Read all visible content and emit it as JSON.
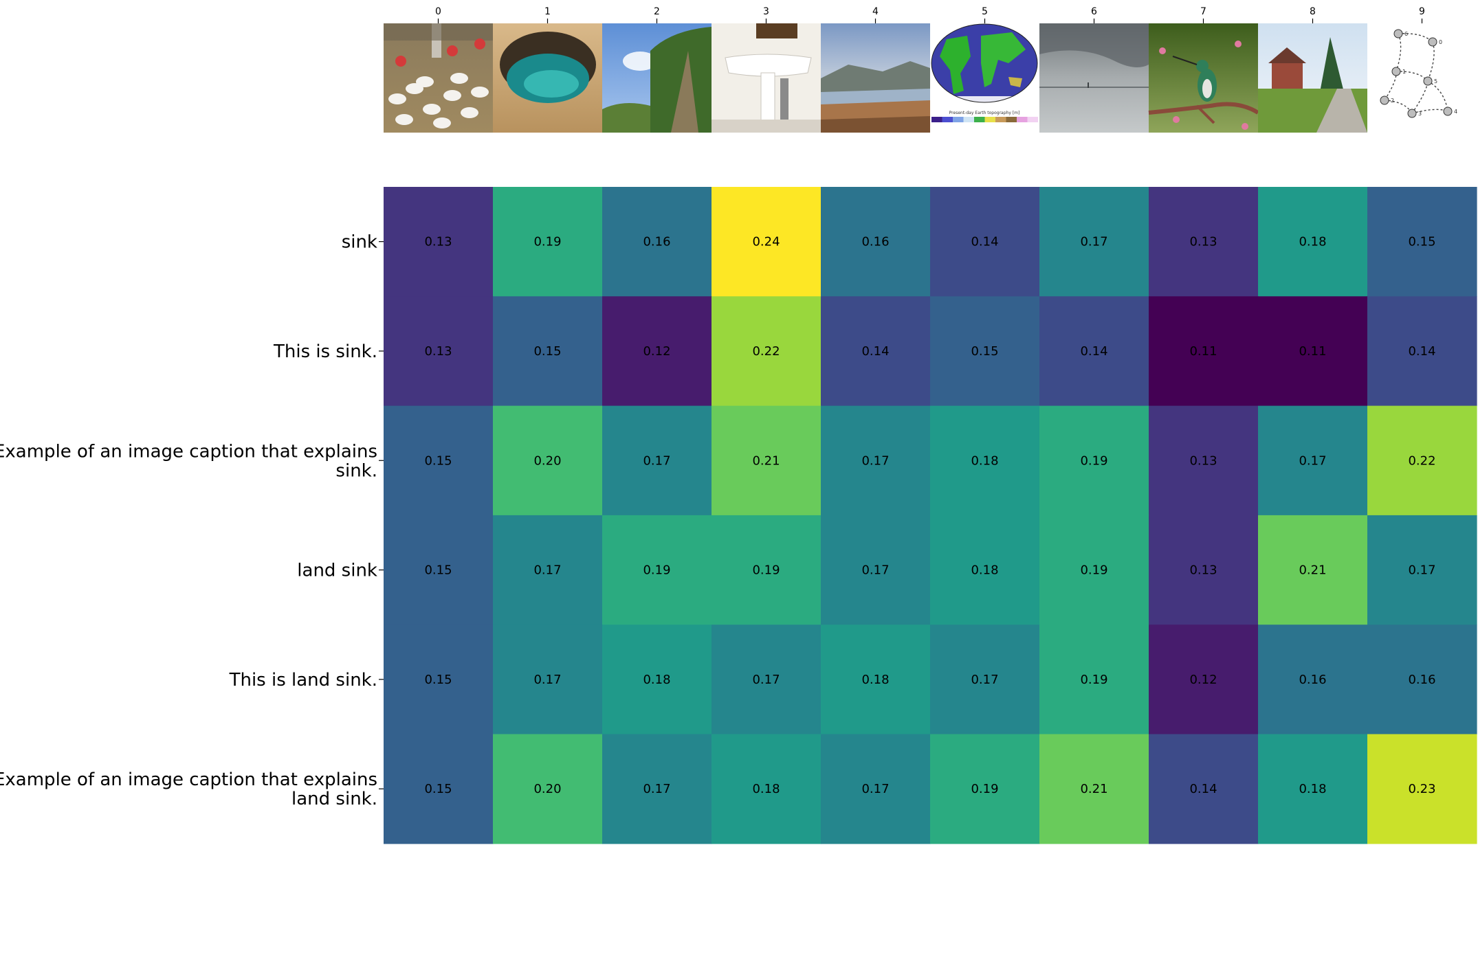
{
  "chart_data": {
    "type": "heatmap",
    "colormap": "viridis",
    "value_range": [
      0.11,
      0.24
    ],
    "columns": [
      "0",
      "1",
      "2",
      "3",
      "4",
      "5",
      "6",
      "7",
      "8",
      "9"
    ],
    "column_images": [
      "chickens-on-barn-floor-photo",
      "cave-with-turquoise-pool-photo",
      "sky-and-trees-photo",
      "bathroom-sink-photo",
      "river-valley-landscape-photo",
      "world-topography-map",
      "stormy-lake-horizon-photo",
      "hummingbird-on-branch-photo",
      "rural-road-with-house-photo",
      "directed-graph-diagram"
    ],
    "map_legend_caption": "Present-day Earth topography [m]",
    "rows": [
      [
        "sink"
      ],
      [
        "This is sink."
      ],
      [
        "Example of an image caption that explains",
        "sink."
      ],
      [
        "land sink"
      ],
      [
        "This is land sink."
      ],
      [
        "Example of an image caption that explains",
        "land sink."
      ]
    ],
    "values": [
      [
        0.13,
        0.19,
        0.16,
        0.24,
        0.16,
        0.14,
        0.17,
        0.13,
        0.18,
        0.15
      ],
      [
        0.13,
        0.15,
        0.12,
        0.22,
        0.14,
        0.15,
        0.14,
        0.11,
        0.11,
        0.14
      ],
      [
        0.15,
        0.2,
        0.17,
        0.21,
        0.17,
        0.18,
        0.19,
        0.13,
        0.17,
        0.22
      ],
      [
        0.15,
        0.17,
        0.19,
        0.19,
        0.17,
        0.18,
        0.19,
        0.13,
        0.21,
        0.17
      ],
      [
        0.15,
        0.17,
        0.18,
        0.17,
        0.18,
        0.17,
        0.19,
        0.12,
        0.16,
        0.16
      ],
      [
        0.15,
        0.2,
        0.17,
        0.18,
        0.17,
        0.19,
        0.21,
        0.14,
        0.18,
        0.23
      ]
    ]
  }
}
